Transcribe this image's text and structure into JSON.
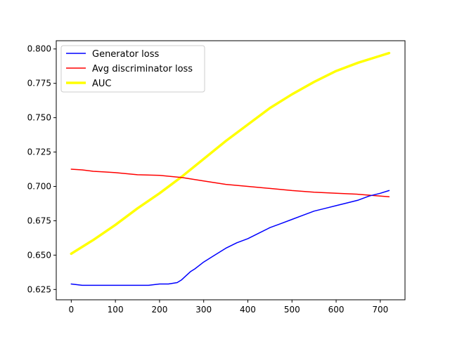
{
  "chart_data": {
    "type": "line",
    "title": "",
    "xlabel": "",
    "ylabel": "",
    "xlim": [
      -34,
      756
    ],
    "ylim": [
      0.6175,
      0.806
    ],
    "xticks": [
      0,
      100,
      200,
      300,
      400,
      500,
      600,
      700
    ],
    "yticks": [
      0.625,
      0.65,
      0.675,
      0.7,
      0.725,
      0.75,
      0.775,
      0.8
    ],
    "xtick_labels": [
      "0",
      "100",
      "200",
      "300",
      "400",
      "500",
      "600",
      "700"
    ],
    "ytick_labels": [
      "0.625",
      "0.650",
      "0.675",
      "0.700",
      "0.725",
      "0.750",
      "0.775",
      "0.800"
    ],
    "grid": false,
    "legend_position": "top-left",
    "series": [
      {
        "name": "Generator loss",
        "color": "#0000ff",
        "x": [
          0,
          25,
          50,
          75,
          100,
          125,
          150,
          175,
          200,
          220,
          240,
          250,
          260,
          270,
          280,
          300,
          325,
          350,
          375,
          400,
          425,
          450,
          475,
          500,
          525,
          550,
          575,
          600,
          625,
          650,
          675,
          700,
          720
        ],
        "y": [
          0.629,
          0.628,
          0.628,
          0.628,
          0.628,
          0.628,
          0.628,
          0.628,
          0.629,
          0.629,
          0.63,
          0.632,
          0.635,
          0.638,
          0.64,
          0.645,
          0.65,
          0.655,
          0.659,
          0.662,
          0.666,
          0.67,
          0.673,
          0.676,
          0.679,
          0.682,
          0.684,
          0.686,
          0.688,
          0.69,
          0.693,
          0.695,
          0.697
        ]
      },
      {
        "name": "Avg discriminator loss",
        "color": "#ff0000",
        "x": [
          0,
          25,
          50,
          75,
          100,
          150,
          200,
          250,
          300,
          350,
          400,
          450,
          500,
          550,
          600,
          650,
          700,
          720
        ],
        "y": [
          0.7125,
          0.712,
          0.711,
          0.7105,
          0.71,
          0.7085,
          0.708,
          0.7065,
          0.704,
          0.7015,
          0.7,
          0.6985,
          0.697,
          0.6958,
          0.695,
          0.6943,
          0.693,
          0.6925
        ]
      },
      {
        "name": "AUC",
        "color": "#ffff00",
        "x": [
          0,
          50,
          100,
          150,
          200,
          250,
          300,
          350,
          400,
          450,
          500,
          550,
          600,
          650,
          700,
          720
        ],
        "y": [
          0.651,
          0.661,
          0.672,
          0.684,
          0.695,
          0.707,
          0.72,
          0.733,
          0.745,
          0.757,
          0.767,
          0.776,
          0.784,
          0.79,
          0.795,
          0.797
        ]
      }
    ]
  }
}
